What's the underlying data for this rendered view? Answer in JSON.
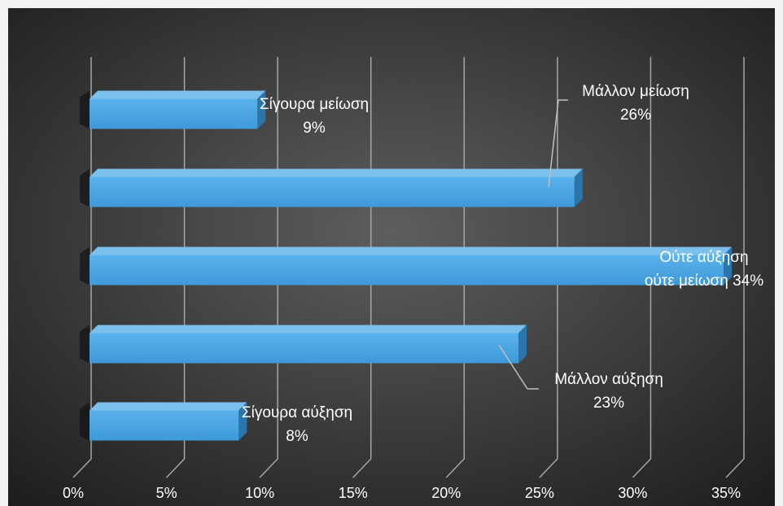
{
  "chart_data": {
    "type": "bar",
    "orientation": "horizontal",
    "style": "3d",
    "categories": [
      "Σίγουρα μείωση",
      "Μάλλον μείωση",
      "Ούτε αύξηση ούτε μείωση",
      "Μάλλον αύξηση",
      "Σίγουρα αύξηση"
    ],
    "values": [
      9,
      26,
      34,
      23,
      8
    ],
    "data_labels": [
      [
        "Σίγουρα μείωση",
        "9%"
      ],
      [
        "Μάλλον μείωση",
        "26%"
      ],
      [
        "Ούτε αύξηση",
        "ούτε μείωση 34%"
      ],
      [
        "Μάλλον αύξηση",
        "23%"
      ],
      [
        "Σίγουρα αύξηση",
        "8%"
      ]
    ],
    "x_ticks": [
      "0%",
      "5%",
      "10%",
      "15%",
      "20%",
      "25%",
      "30%",
      "35%"
    ],
    "xlim": [
      0,
      35
    ],
    "unit": "%",
    "grid": true,
    "legend": "none",
    "colors": {
      "bar_front": "#4aa6e6",
      "bar_top": "#7cc0ee",
      "bar_side": "#2c75aa",
      "gridline": "#a6a6a6",
      "label_text": "#ffffff",
      "background_center": "#595959",
      "background_edge": "#1a1a1a"
    }
  }
}
